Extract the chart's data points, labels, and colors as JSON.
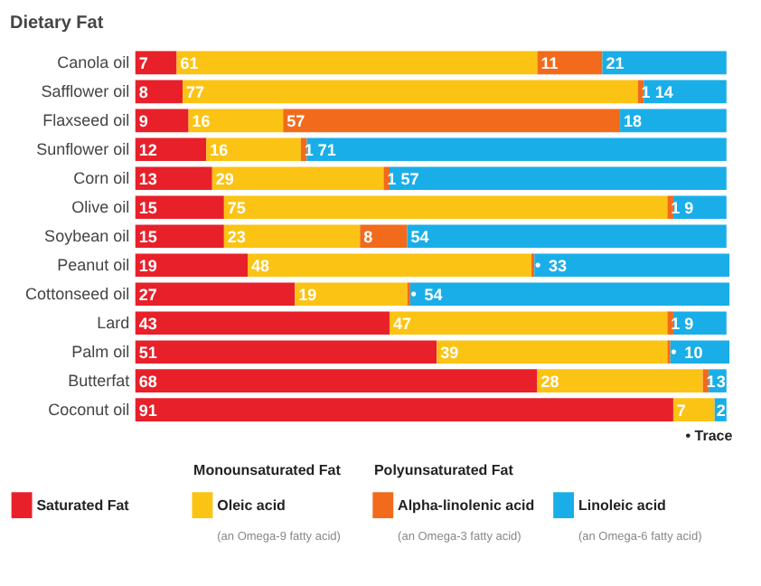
{
  "chart_data": {
    "type": "bar",
    "orientation": "horizontal",
    "stacked": true,
    "title": "Dietary Fat",
    "data_labels": true,
    "legend": "bottom",
    "grid": false,
    "xlim": [
      0,
      101
    ],
    "tick_labels": "y",
    "categories": [
      "Canola oil",
      "Safflower oil",
      "Flaxseed oil",
      "Sunflower oil",
      "Corn oil",
      "Olive oil",
      "Soybean oil",
      "Peanut oil",
      "Cottonseed oil",
      "Lard",
      "Palm oil",
      "Butterfat",
      "Coconut oil"
    ],
    "series": [
      {
        "name": "Saturated Fat",
        "color": "#e8202a",
        "values": [
          7,
          8,
          9,
          12,
          13,
          15,
          15,
          19,
          27,
          43,
          51,
          68,
          91
        ]
      },
      {
        "name": "Oleic acid",
        "color": "#fbc314",
        "values": [
          61,
          77,
          16,
          16,
          29,
          75,
          23,
          48,
          19,
          47,
          39,
          28,
          7
        ]
      },
      {
        "name": "Alpha-linolenic acid",
        "color": "#f26a1b",
        "values": [
          11,
          1,
          57,
          1,
          1,
          1,
          8,
          0.5,
          0.5,
          1,
          0.5,
          1,
          null
        ],
        "value_labels": [
          "11",
          "1",
          "57",
          "1",
          "1",
          "1",
          "8",
          "•",
          "•",
          "1",
          "•",
          "1",
          null
        ]
      },
      {
        "name": "Linoleic acid",
        "color": "#1aaee8",
        "values": [
          21,
          14,
          18,
          71,
          57,
          9,
          54,
          33,
          54,
          9,
          10,
          3,
          2
        ]
      }
    ],
    "annotations": [
      "• Trace",
      "Monounsaturated Fat",
      "Polyunsaturated Fat",
      "(an Omega-9 fatty acid)",
      "(an Omega-3 fatty acid)",
      "(an Omega-6 fatty acid)"
    ]
  }
}
